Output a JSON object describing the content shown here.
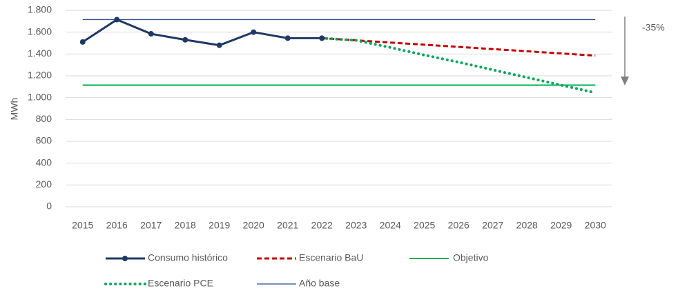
{
  "chart_data": {
    "type": "line",
    "ylabel": "MWh",
    "annotation": "-35%",
    "categories": [
      "2015",
      "2016",
      "2017",
      "2018",
      "2019",
      "2020",
      "2021",
      "2022",
      "2023",
      "2024",
      "2025",
      "2026",
      "2027",
      "2028",
      "2029",
      "2030"
    ],
    "ylim": [
      0,
      1800
    ],
    "yticks": [
      0,
      200,
      400,
      600,
      800,
      {
        "value": 1000,
        "label": "1.000"
      },
      {
        "value": 1200,
        "label": "1.200"
      },
      {
        "value": 1400,
        "label": "1.400"
      },
      {
        "value": 1600,
        "label": "1.600"
      },
      {
        "value": 1800,
        "label": "1.800"
      }
    ],
    "grid": true,
    "series": [
      {
        "name": "Consumo histórico",
        "color": "#1f3864",
        "style": "solid-markers",
        "values": [
          1510,
          1715,
          1585,
          1530,
          1480,
          1600,
          1545,
          1545,
          null,
          null,
          null,
          null,
          null,
          null,
          null,
          null
        ]
      },
      {
        "name": "Escenario BaU",
        "color": "#c00000",
        "style": "dashed",
        "values": [
          null,
          null,
          null,
          null,
          null,
          null,
          null,
          1545,
          1525,
          1505,
          1485,
          1465,
          1445,
          1425,
          1405,
          1385
        ]
      },
      {
        "name": "Objetivo",
        "color": "#00b050",
        "style": "solid",
        "values": [
          1115,
          1115,
          1115,
          1115,
          1115,
          1115,
          1115,
          1115,
          1115,
          1115,
          1115,
          1115,
          1115,
          1115,
          1115,
          1115
        ]
      },
      {
        "name": "Escenario PCE",
        "color": "#00a65a",
        "style": "dotted",
        "values": [
          null,
          null,
          null,
          null,
          null,
          null,
          null,
          1545,
          1525,
          1460,
          1390,
          1325,
          1255,
          1185,
          1115,
          1045
        ]
      },
      {
        "name": "Año base",
        "color": "#2f4b8c",
        "style": "thin",
        "values": [
          1715,
          1715,
          1715,
          1715,
          1715,
          1715,
          1715,
          1715,
          1715,
          1715,
          1715,
          1715,
          1715,
          1715,
          1715,
          1715
        ]
      }
    ]
  }
}
